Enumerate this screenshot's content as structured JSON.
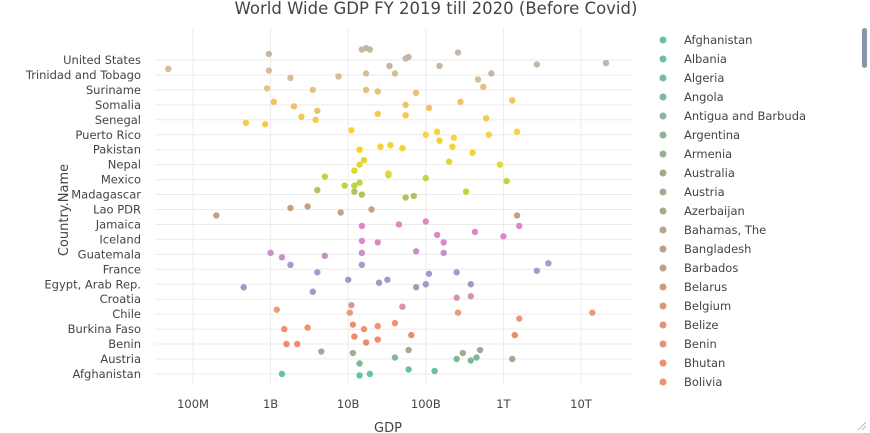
{
  "chart_data": {
    "type": "scatter",
    "title": "World Wide GDP FY 2019 till 2020 (Before Covid)",
    "xlabel": "GDP",
    "ylabel": "Country.Name",
    "x_scale": "log",
    "xlim": [
      20000000,
      50000000000000
    ],
    "x_ticks": [
      {
        "value": 100000000,
        "label": "100M"
      },
      {
        "value": 1000000000,
        "label": "1B"
      },
      {
        "value": 10000000000,
        "label": "10B"
      },
      {
        "value": 100000000000,
        "label": "100B"
      },
      {
        "value": 1000000000000,
        "label": "1T"
      },
      {
        "value": 10000000000000,
        "label": "10T"
      }
    ],
    "y_tick_labels": [
      "United States",
      "Trinidad and Tobago",
      "Suriname",
      "Somalia",
      "Senegal",
      "Puerto Rico",
      "Pakistan",
      "Nepal",
      "Mexico",
      "Madagascar",
      "Lao PDR",
      "Jamaica",
      "Iceland",
      "Guatemala",
      "France",
      "Egypt, Arab Rep.",
      "Croatia",
      "Chile",
      "Burkina Faso",
      "Benin",
      "Austria",
      "Afghanistan"
    ],
    "grid": true,
    "legend": {
      "placement": "right",
      "items": [
        {
          "name": "Afghanistan",
          "color": "#66c2a5"
        },
        {
          "name": "Albania",
          "color": "#6ebfa2"
        },
        {
          "name": "Algeria",
          "color": "#76bc9f"
        },
        {
          "name": "Angola",
          "color": "#7eb99c"
        },
        {
          "name": "Antigua and Barbuda",
          "color": "#86b699"
        },
        {
          "name": "Argentina",
          "color": "#8eb396"
        },
        {
          "name": "Armenia",
          "color": "#96b093"
        },
        {
          "name": "Australia",
          "color": "#9ead90"
        },
        {
          "name": "Austria",
          "color": "#a6aa8d"
        },
        {
          "name": "Azerbaijan",
          "color": "#aea78a"
        },
        {
          "name": "Bahamas, The",
          "color": "#b6a487"
        },
        {
          "name": "Bangladesh",
          "color": "#bea184"
        },
        {
          "name": "Barbados",
          "color": "#c69e81"
        },
        {
          "name": "Belarus",
          "color": "#ce9b7e"
        },
        {
          "name": "Belgium",
          "color": "#d6987b"
        },
        {
          "name": "Belize",
          "color": "#de9578"
        },
        {
          "name": "Benin",
          "color": "#e69275"
        },
        {
          "name": "Bhutan",
          "color": "#ee8f72"
        },
        {
          "name": "Bolivia",
          "color": "#e8956a"
        }
      ]
    },
    "series": [
      {
        "name": "Afghanistan",
        "color": "#66c2a5",
        "points": [
          [
            1400000000,
            0.0
          ],
          [
            14000000000,
            -0.1
          ],
          [
            19000000000,
            0.0
          ],
          [
            60000000000,
            0.3
          ],
          [
            130000000000,
            0.2
          ]
        ]
      },
      {
        "name": "Albania",
        "color": "#7fb99b",
        "points": [
          [
            14000000000,
            0.7
          ],
          [
            40000000000,
            1.1
          ],
          [
            250000000000,
            1.0
          ],
          [
            380000000000,
            0.9
          ],
          [
            450000000000,
            1.1
          ]
        ]
      },
      {
        "name": "Austria",
        "color": "#a4aa8e",
        "points": [
          [
            4500000000,
            1.5
          ],
          [
            11500000000,
            1.4
          ],
          [
            60000000000,
            1.6
          ],
          [
            300000000000,
            1.4
          ],
          [
            500000000000,
            1.6
          ],
          [
            1300000000000,
            1.0
          ]
        ]
      },
      {
        "name": "Benin",
        "color": "#ef8b6b",
        "points": [
          [
            1600000000,
            2.0
          ],
          [
            2200000000,
            2.0
          ],
          [
            12000000000,
            2.5
          ],
          [
            17000000000,
            2.1
          ],
          [
            24000000000,
            2.3
          ],
          [
            65000000000,
            2.6
          ],
          [
            1400000000000,
            2.6
          ]
        ]
      },
      {
        "name": "Burkina Faso",
        "color": "#f0926a",
        "points": [
          [
            1500000000,
            3.0
          ],
          [
            3000000000,
            3.1
          ],
          [
            11500000000,
            3.3
          ],
          [
            16000000000,
            3.0
          ],
          [
            24000000000,
            3.2
          ],
          [
            40000000000,
            3.4
          ]
        ]
      },
      {
        "name": "Chile",
        "color": "#ec9a78",
        "points": [
          [
            1200000000,
            4.3
          ],
          [
            10500000000,
            4.1
          ],
          [
            260000000000,
            4.1
          ],
          [
            1600000000000,
            3.7
          ],
          [
            14000000000000,
            4.1
          ]
        ]
      },
      {
        "name": "Croatia",
        "color": "#d996a0",
        "points": [
          [
            11000000000,
            4.6
          ],
          [
            50000000000,
            4.5
          ],
          [
            250000000000,
            5.1
          ],
          [
            380000000000,
            5.2
          ]
        ]
      },
      {
        "name": "Egypt, Arab Rep.",
        "color": "#a298c6",
        "points": [
          [
            450000000,
            5.8
          ],
          [
            3500000000,
            5.5
          ],
          [
            10000000000,
            6.3
          ],
          [
            25000000000,
            6.1
          ],
          [
            32000000000,
            6.3
          ],
          [
            75000000000,
            5.8
          ],
          [
            100000000000,
            6.0
          ],
          [
            380000000000,
            6.0
          ]
        ]
      },
      {
        "name": "France",
        "color": "#9a9fd0",
        "points": [
          [
            1800000000,
            7.3
          ],
          [
            4000000000,
            6.8
          ],
          [
            15000000000,
            7.3
          ],
          [
            110000000000,
            6.7
          ],
          [
            250000000000,
            6.8
          ],
          [
            2700000000000,
            6.9
          ],
          [
            3800000000000,
            7.4
          ]
        ]
      },
      {
        "name": "Guatemala",
        "color": "#c591c6",
        "points": [
          [
            1000000000,
            8.1
          ],
          [
            1400000000,
            7.8
          ],
          [
            5000000000,
            7.9
          ],
          [
            15000000000,
            8.1
          ],
          [
            75000000000,
            8.2
          ],
          [
            170000000000,
            8.1
          ]
        ]
      },
      {
        "name": "Iceland",
        "color": "#dc88c6",
        "points": [
          [
            15000000000,
            8.9
          ],
          [
            24000000000,
            8.8
          ],
          [
            140000000000,
            9.3
          ],
          [
            170000000000,
            8.8
          ],
          [
            1000000000000,
            9.2
          ]
        ]
      },
      {
        "name": "Jamaica",
        "color": "#e186c4",
        "points": [
          [
            15000000000,
            9.9
          ],
          [
            45000000000,
            10.0
          ],
          [
            100000000000,
            10.2
          ],
          [
            430000000000,
            9.5
          ],
          [
            1600000000000,
            9.9
          ]
        ]
      },
      {
        "name": "Lao PDR",
        "color": "#c5a184",
        "points": [
          [
            200000000,
            10.6
          ],
          [
            1800000000,
            11.1
          ],
          [
            3000000000,
            11.2
          ],
          [
            8000000000,
            10.8
          ],
          [
            20000000000,
            11.0
          ],
          [
            1500000000000,
            10.6
          ]
        ]
      },
      {
        "name": "Madagascar",
        "color": "#b0c45a",
        "points": [
          [
            4000000000,
            12.3
          ],
          [
            12000000000,
            12.2
          ],
          [
            15000000000,
            12.0
          ],
          [
            55000000000,
            11.8
          ],
          [
            70000000000,
            11.9
          ]
        ]
      },
      {
        "name": "Mexico",
        "color": "#c2d340",
        "points": [
          [
            5000000000,
            13.2
          ],
          [
            9000000000,
            12.6
          ],
          [
            12000000000,
            12.6
          ],
          [
            14000000000,
            12.8
          ],
          [
            33000000000,
            13.3
          ],
          [
            100000000000,
            13.1
          ],
          [
            330000000000,
            12.2
          ],
          [
            1100000000000,
            12.9
          ]
        ]
      },
      {
        "name": "Nepal",
        "color": "#dfd830",
        "points": [
          [
            12000000000,
            13.6
          ],
          [
            14000000000,
            14.0
          ],
          [
            16000000000,
            14.3
          ],
          [
            33000000000,
            13.4
          ],
          [
            200000000000,
            14.2
          ],
          [
            900000000000,
            14.0
          ]
        ]
      },
      {
        "name": "Pakistan",
        "color": "#f2d22f",
        "points": [
          [
            14000000000,
            15.0
          ],
          [
            26000000000,
            15.2
          ],
          [
            35000000000,
            15.3
          ],
          [
            50000000000,
            15.1
          ],
          [
            150000000000,
            15.6
          ],
          [
            220000000000,
            15.2
          ],
          [
            400000000000,
            14.8
          ]
        ]
      },
      {
        "name": "Puerto Rico",
        "color": "#fbd140",
        "points": [
          [
            11000000000,
            16.3
          ],
          [
            100000000000,
            16.0
          ],
          [
            140000000000,
            16.2
          ],
          [
            230000000000,
            15.8
          ],
          [
            650000000000,
            16.0
          ],
          [
            1500000000000,
            16.2
          ]
        ]
      },
      {
        "name": "Senegal",
        "color": "#f3cb4c",
        "points": [
          [
            480000000,
            16.8
          ],
          [
            850000000,
            16.7
          ],
          [
            2500000000,
            17.2
          ],
          [
            3800000000,
            17.0
          ],
          [
            24000000000,
            17.4
          ],
          [
            55000000000,
            17.3
          ],
          [
            600000000000,
            17.1
          ]
        ]
      },
      {
        "name": "Somalia",
        "color": "#eec460",
        "points": [
          [
            1100000000,
            18.2
          ],
          [
            2000000000,
            17.9
          ],
          [
            4000000000,
            17.6
          ],
          [
            55000000000,
            18.0
          ],
          [
            110000000000,
            17.8
          ],
          [
            280000000000,
            18.2
          ],
          [
            1300000000000,
            18.3
          ]
        ]
      },
      {
        "name": "Suriname",
        "color": "#e8c07a",
        "points": [
          [
            900000000,
            19.1
          ],
          [
            3500000000,
            19.0
          ],
          [
            17000000000,
            19.0
          ],
          [
            24000000000,
            18.9
          ],
          [
            75000000000,
            18.8
          ],
          [
            550000000000,
            19.2
          ]
        ]
      },
      {
        "name": "Trinidad and Tobago",
        "color": "#d9bb96",
        "points": [
          [
            48000000,
            20.4
          ],
          [
            950000000,
            20.3
          ],
          [
            1800000000,
            19.8
          ],
          [
            7500000000,
            19.9
          ],
          [
            17000000000,
            20.1
          ],
          [
            40000000000,
            20.1
          ],
          [
            470000000000,
            19.7
          ]
        ]
      },
      {
        "name": "United States",
        "color": "#c5b6a6",
        "points": [
          [
            950000000,
            21.4
          ],
          [
            15000000000,
            21.7
          ],
          [
            17000000000,
            21.8
          ],
          [
            19000000000,
            21.7
          ],
          [
            34000000000,
            20.6
          ],
          [
            55000000000,
            21.1
          ],
          [
            60000000000,
            21.2
          ],
          [
            150000000000,
            20.6
          ],
          [
            260000000000,
            21.5
          ],
          [
            700000000000,
            20.1
          ],
          [
            2700000000000,
            20.7
          ],
          [
            21000000000000,
            20.8
          ]
        ]
      }
    ]
  }
}
